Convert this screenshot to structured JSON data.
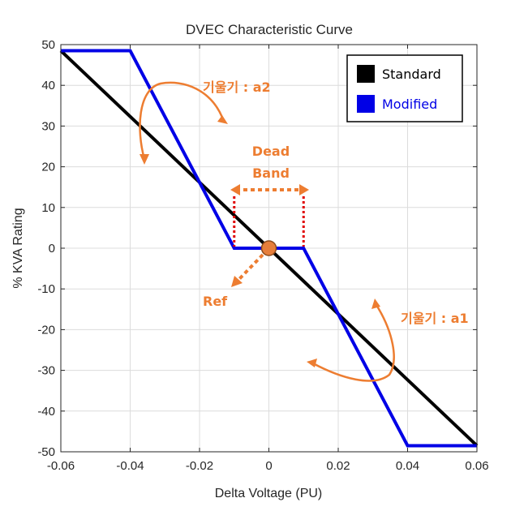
{
  "chart_data": {
    "type": "line",
    "title": "DVEC Characteristic Curve",
    "xlabel": "Delta Voltage (PU)",
    "ylabel": "% KVA Rating",
    "xlim": [
      -0.06,
      0.06
    ],
    "ylim": [
      -50,
      50
    ],
    "xticks": [
      -0.06,
      -0.04,
      -0.02,
      0,
      0.02,
      0.04,
      0.06
    ],
    "xtick_labels": [
      "-0.06",
      "-0.04",
      "-0.02",
      "0",
      "0.02",
      "0.04",
      "0.06"
    ],
    "yticks": [
      50,
      40,
      30,
      20,
      10,
      0,
      -10,
      -20,
      -30,
      -40,
      -50
    ],
    "ytick_labels": [
      "50",
      "40",
      "30",
      "20",
      "10",
      "0",
      "-10",
      "-20",
      "-30",
      "-40",
      "-50"
    ],
    "grid": true,
    "legend_position": "top-right",
    "series": [
      {
        "name": "Standard",
        "color": "#000000",
        "x": [
          -0.06,
          0.06
        ],
        "y": [
          48.5,
          -48.5
        ]
      },
      {
        "name": "Modified",
        "color": "#0000E6",
        "x": [
          -0.06,
          -0.04,
          -0.01,
          0.01,
          0.04,
          0.06
        ],
        "y": [
          48.5,
          48.5,
          0,
          0,
          -48.5,
          -48.5
        ]
      }
    ],
    "annotations": {
      "slope_a2": "기울기 : a2",
      "slope_a1": "기울기 : a1",
      "dead_band_line1": "Dead",
      "dead_band_line2": "Band",
      "ref": "Ref",
      "ref_point": {
        "x": 0,
        "y": 0
      },
      "dead_band_x": [
        -0.01,
        0.01
      ],
      "color": "#ED7D31",
      "marker_color": "#C0392B"
    }
  }
}
